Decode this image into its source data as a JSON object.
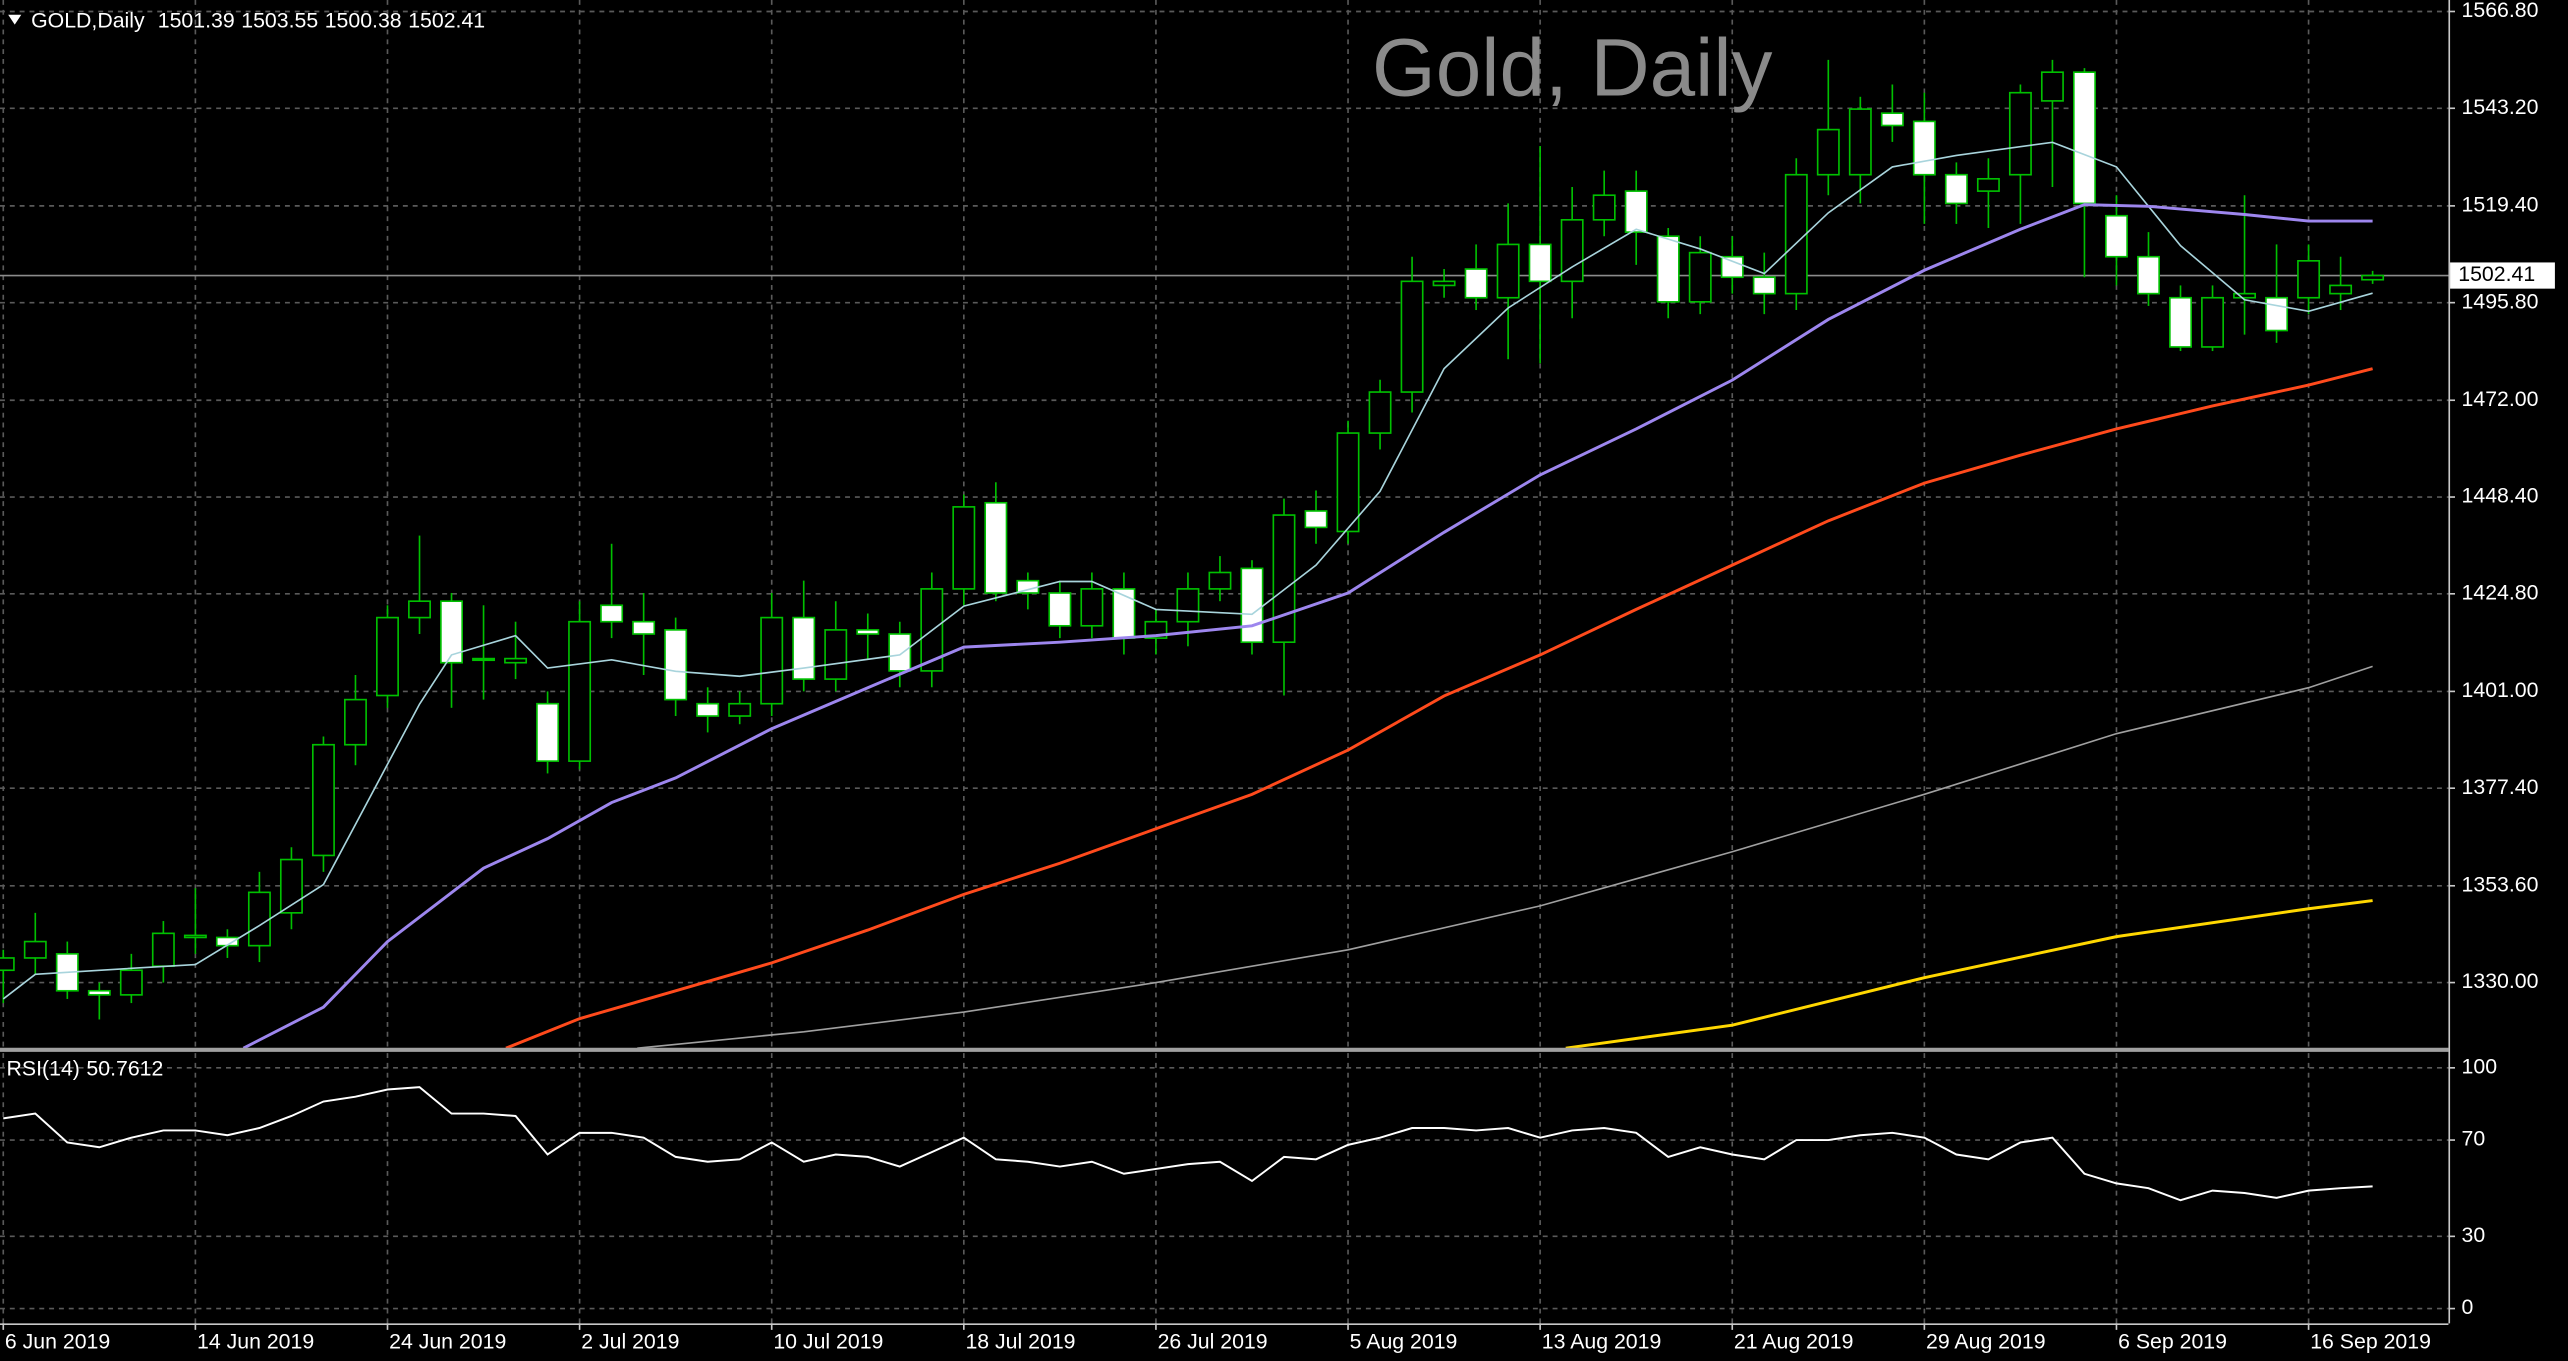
{
  "chart_data": [
    {
      "type": "candlestick",
      "title": "Gold, Daily",
      "symbol": "GOLD,Daily",
      "ohlc": [
        1501.39,
        1503.55,
        1500.38,
        1502.41
      ],
      "categories": [
        "6 Jun 2019",
        null,
        null,
        null,
        null,
        null,
        "14 Jun 2019",
        null,
        null,
        null,
        null,
        null,
        "24 Jun 2019",
        null,
        null,
        null,
        null,
        null,
        "2 Jul 2019",
        null,
        null,
        null,
        null,
        null,
        "10 Jul 2019",
        null,
        null,
        null,
        null,
        null,
        "18 Jul 2019",
        null,
        null,
        null,
        null,
        null,
        "26 Jul 2019",
        null,
        null,
        null,
        null,
        null,
        "5 Aug 2019",
        null,
        null,
        null,
        null,
        null,
        "13 Aug 2019",
        null,
        null,
        null,
        null,
        null,
        "21 Aug 2019",
        null,
        null,
        null,
        null,
        null,
        "29 Aug 2019",
        null,
        null,
        null,
        null,
        null,
        "6 Sep 2019",
        null,
        null,
        null,
        null,
        null,
        "16 Sep 2019",
        null,
        null
      ],
      "open": [
        1333,
        1336,
        1337,
        1328,
        1327,
        1334,
        1341,
        1341,
        1339,
        1347,
        1361,
        1388,
        1400,
        1419,
        1423,
        1409,
        1408,
        1398,
        1384,
        1422,
        1418,
        1416,
        1398,
        1395,
        1398,
        1419,
        1404,
        1416,
        1415,
        1406,
        1426,
        1447,
        1428,
        1425,
        1417,
        1426,
        1414,
        1418,
        1426,
        1431,
        1413,
        1445,
        1440,
        1464,
        1474,
        1500,
        1504,
        1497,
        1510,
        1501,
        1516,
        1523,
        1512,
        1496,
        1507,
        1502,
        1498,
        1527,
        1527,
        1542,
        1540,
        1527,
        1523,
        1527,
        1545,
        1552,
        1517,
        1507,
        1497,
        1485,
        1497,
        1497,
        1497,
        1498,
        1501.39
      ],
      "high": [
        1338,
        1347,
        1340,
        1330,
        1337,
        1345,
        1353,
        1343,
        1357,
        1363,
        1390,
        1405,
        1422,
        1439,
        1425,
        1422,
        1418,
        1401,
        1423,
        1437,
        1425,
        1419,
        1402,
        1401,
        1425,
        1428,
        1423,
        1420,
        1418,
        1430,
        1449,
        1452,
        1430,
        1428,
        1430,
        1430,
        1421,
        1430,
        1434,
        1433,
        1448,
        1450,
        1467,
        1477,
        1507,
        1504,
        1510,
        1520,
        1534,
        1524,
        1528,
        1528,
        1514,
        1512,
        1512,
        1508,
        1531,
        1555,
        1546,
        1549,
        1547,
        1530,
        1531,
        1549,
        1555,
        1553,
        1522,
        1513,
        1500,
        1500,
        1522,
        1510,
        1510,
        1507,
        1503.55
      ],
      "low": [
        1325,
        1332,
        1326,
        1321,
        1325,
        1330,
        1337,
        1336,
        1335,
        1343,
        1357,
        1383,
        1397,
        1415,
        1397,
        1399,
        1404,
        1381,
        1382,
        1414,
        1405,
        1395,
        1391,
        1393,
        1395,
        1401,
        1401,
        1409,
        1402,
        1402,
        1422,
        1423,
        1421,
        1414,
        1414,
        1410,
        1410,
        1412,
        1423,
        1410,
        1400,
        1437,
        1437,
        1460,
        1469,
        1497,
        1494,
        1482,
        1481,
        1492,
        1512,
        1505,
        1492,
        1493,
        1498,
        1493,
        1494,
        1522,
        1520,
        1535,
        1515,
        1515,
        1514,
        1515,
        1524,
        1502,
        1500,
        1495,
        1484,
        1484,
        1488,
        1486,
        1493,
        1494,
        1500.38
      ],
      "close": [
        1336,
        1340,
        1328,
        1327,
        1333,
        1342,
        1341.5,
        1339,
        1352,
        1360,
        1388,
        1399,
        1419,
        1423,
        1408,
        1409,
        1409,
        1384,
        1418,
        1418,
        1415,
        1399,
        1395,
        1398,
        1419,
        1404,
        1416,
        1415,
        1406,
        1426,
        1446,
        1425,
        1425,
        1417,
        1426,
        1414,
        1418,
        1426,
        1430,
        1413,
        1444,
        1441,
        1464,
        1474,
        1501,
        1501,
        1497,
        1510,
        1501,
        1516,
        1522,
        1513,
        1496,
        1508,
        1502,
        1498,
        1527,
        1538,
        1543,
        1539,
        1527,
        1520,
        1526,
        1547,
        1552,
        1520,
        1507,
        1498,
        1485,
        1497,
        1498,
        1489,
        1506,
        1500,
        1502.41
      ],
      "up_color": "#000000",
      "down_color": "#ffffff",
      "wick_color": "#00c000",
      "ylim": [
        1314.0,
        1569.6
      ],
      "yticks": [
        {
          "value": 1330,
          "label": "1330.00"
        },
        {
          "value": 1353.6,
          "label": "1353.60"
        },
        {
          "value": 1377.4,
          "label": "1377.40"
        },
        {
          "value": 1401,
          "label": "1401.00"
        },
        {
          "value": 1424.8,
          "label": "1424.80"
        },
        {
          "value": 1448.4,
          "label": "1448.40"
        },
        {
          "value": 1472,
          "label": "1472.00"
        },
        {
          "value": 1495.8,
          "label": "1495.80"
        },
        {
          "value": 1519.4,
          "label": "1519.40"
        },
        {
          "value": 1543.2,
          "label": "1543.20"
        },
        {
          "value": 1566.8,
          "label": "1566.80"
        }
      ],
      "last_price": 1502.41,
      "grid": true,
      "overlays": [
        {
          "color": "#a8d4dc",
          "x": [
            0,
            1,
            3,
            6,
            8,
            10,
            13,
            14,
            16,
            17,
            19,
            21,
            23,
            25,
            28,
            30,
            33,
            34,
            36,
            39,
            41,
            43,
            45,
            47,
            49,
            51,
            53,
            55,
            57,
            59,
            61,
            64,
            66,
            68,
            70,
            72,
            74
          ],
          "values": [
            1326,
            1332,
            1333,
            1334.4,
            1343.9,
            1353.9,
            1397.9,
            1409.9,
            1414.6,
            1406.7,
            1408.7,
            1405.9,
            1404.7,
            1406.7,
            1409.9,
            1421.8,
            1427.8,
            1427.8,
            1421,
            1419.8,
            1431.8,
            1449.8,
            1479.7,
            1494.5,
            1504.5,
            1513.7,
            1508.9,
            1502.9,
            1517.7,
            1528.9,
            1531.7,
            1534.9,
            1528.9,
            1509.7,
            1496.5,
            1493.7,
            1498.1
          ]
        },
        {
          "color": "#9d86ee",
          "x": [
            7.5,
            10,
            12,
            15,
            17,
            19,
            21,
            24,
            27,
            30,
            33,
            36,
            39,
            42,
            45,
            48,
            51,
            54,
            57,
            60,
            63,
            65,
            67,
            70,
            72,
            74
          ],
          "values": [
            1314,
            1324,
            1340,
            1357.9,
            1365.1,
            1373.9,
            1379.9,
            1391.9,
            1401.9,
            1411.8,
            1413,
            1414.6,
            1417,
            1425,
            1439.8,
            1453.8,
            1465,
            1476.9,
            1491.7,
            1503.7,
            1513.7,
            1519.7,
            1519.3,
            1517.3,
            1515.7,
            1515.7
          ]
        },
        {
          "color": "#ff4a1c",
          "x": [
            15.7,
            18,
            21,
            24,
            27,
            30,
            33,
            36,
            39,
            42,
            45,
            48,
            51,
            54,
            57,
            60,
            63,
            66,
            69,
            72,
            74
          ],
          "values": [
            1314,
            1321.2,
            1328,
            1334.8,
            1342.8,
            1351.5,
            1359.1,
            1367.5,
            1375.9,
            1386.7,
            1399.9,
            1409.9,
            1421,
            1431.8,
            1442.6,
            1451.8,
            1458.6,
            1465,
            1470.6,
            1475.7,
            1479.7
          ]
        },
        {
          "color": "#a0a0a0",
          "x": [
            19.8,
            25,
            30,
            36,
            42,
            48,
            54,
            60,
            66,
            72,
            74
          ],
          "values": [
            1314,
            1318,
            1322.8,
            1330,
            1338,
            1348.7,
            1361.9,
            1375.9,
            1390.7,
            1401.9,
            1407.1
          ]
        },
        {
          "color": "#ffd700",
          "x": [
            48.8,
            54,
            60,
            66,
            72,
            74
          ],
          "values": [
            1314,
            1319.6,
            1331.2,
            1341.2,
            1348,
            1350
          ]
        }
      ]
    },
    {
      "type": "line",
      "name": "RSI(14)",
      "last_value": 50.7612,
      "values": [
        79,
        81,
        69,
        67,
        71,
        74,
        74,
        72,
        75,
        80,
        86,
        88,
        91,
        92,
        81,
        81,
        80,
        64,
        73,
        73,
        71,
        63,
        61,
        62,
        69,
        61,
        64,
        63,
        59,
        65,
        71,
        62,
        61,
        59,
        61,
        56,
        58,
        60,
        61,
        53,
        63,
        62,
        68,
        71,
        75,
        75,
        74,
        75,
        71,
        74,
        75,
        73,
        63,
        67,
        64,
        62,
        70,
        70,
        72,
        73,
        71,
        64,
        62,
        69,
        71,
        56,
        52,
        50,
        45,
        49,
        48,
        46,
        49,
        50,
        50.7612
      ],
      "color": "#ffffff",
      "ylim": [
        0,
        100
      ],
      "yticks": [
        0,
        30,
        70,
        100
      ],
      "grid": true
    }
  ]
}
